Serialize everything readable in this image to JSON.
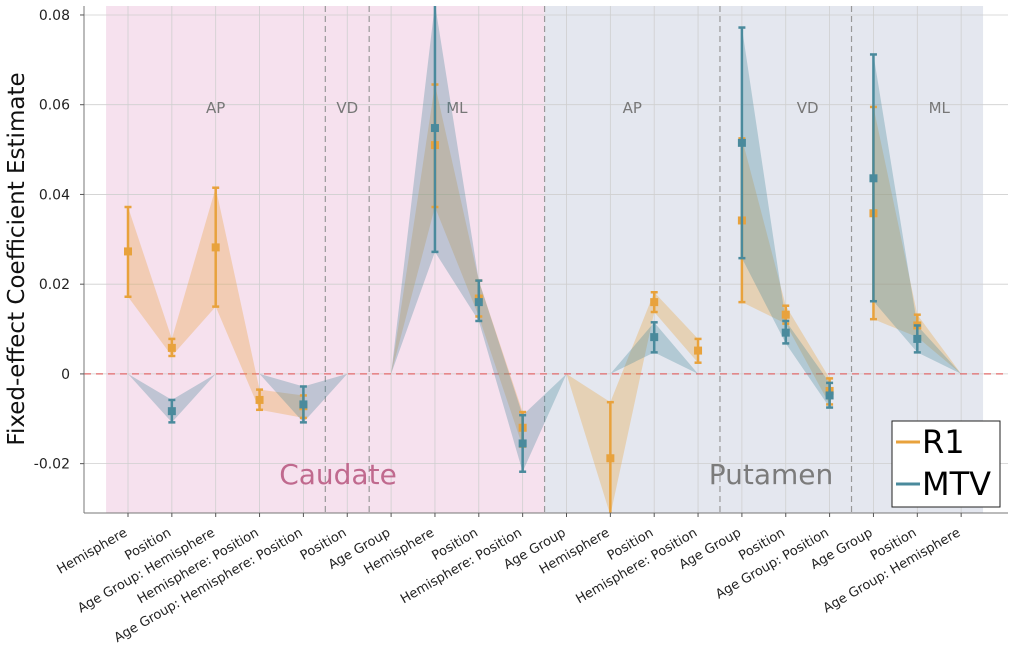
{
  "chart_data": {
    "type": "line",
    "title": "",
    "xlabel": "",
    "ylabel": "Fixed-effect Coefficient Estimate",
    "ylim": [
      -0.031,
      0.082
    ],
    "yticks": [
      -0.02,
      0,
      0.02,
      0.04,
      0.06,
      0.08
    ],
    "ytick_labels": [
      "-0.02",
      "0",
      "0.02",
      "0.04",
      "0.06",
      "0.08"
    ],
    "grid": true,
    "legend_position": "bottom-right",
    "categories": [
      "Hemisphere",
      "Position",
      "Age Group: Hemisphere",
      "Hemisphere: Position",
      "Age Group: Hemisphere: Position",
      "Position",
      "Age Group",
      "Hemisphere",
      "Position",
      "Hemisphere: Position",
      "Age Group",
      "Hemisphere",
      "Position",
      "Hemisphere: Position",
      "Age Group",
      "Position",
      "Age Group: Position",
      "Age Group",
      "Position",
      "Age Group: Hemisphere"
    ],
    "regions": [
      {
        "name": "Caudate",
        "color": "#f6e1ee",
        "label_color": "#c0698e",
        "from": -0.5,
        "to": 9.5
      },
      {
        "name": "Putamen",
        "color": "#e4e7ef",
        "label_color": "#7b7b7b",
        "from": 9.5,
        "to": 19.5
      }
    ],
    "subregions": [
      {
        "label": "AP",
        "center": 2
      },
      {
        "label": "VD",
        "center": 5
      },
      {
        "label": "ML",
        "center": 7.5
      },
      {
        "label": "AP",
        "center": 11.5
      },
      {
        "label": "VD",
        "center": 15.5
      },
      {
        "label": "ML",
        "center": 18.5
      }
    ],
    "dividers": [
      4.5,
      5.5,
      9.5,
      13.5,
      16.5
    ],
    "reference_line": 0,
    "series": [
      {
        "name": "R1",
        "color": "#e8a23c",
        "segments": [
          [
            0,
            4
          ],
          [
            6,
            9
          ],
          [
            10,
            13
          ],
          [
            14,
            16
          ],
          [
            17,
            19
          ]
        ],
        "values": [
          0.0273,
          0.0058,
          0.0282,
          -0.0058,
          -0.0072,
          0.0,
          0.0,
          0.051,
          0.0168,
          -0.012,
          0.0,
          -0.0188,
          0.016,
          0.0052,
          0.0342,
          0.0132,
          -0.0038,
          0.0358,
          0.0108,
          0.0
        ],
        "lower": [
          0.0172,
          0.004,
          0.015,
          -0.008,
          -0.0098,
          0.0,
          0.0,
          0.0372,
          0.0128,
          -0.0162,
          0.0,
          -0.0315,
          0.0138,
          0.0025,
          0.016,
          0.0112,
          -0.0068,
          0.0122,
          0.0082,
          0.0
        ],
        "upper": [
          0.0372,
          0.0078,
          0.0415,
          -0.0035,
          -0.0048,
          0.0,
          0.0,
          0.0645,
          0.0208,
          -0.0085,
          0.0,
          -0.0063,
          0.0182,
          0.0078,
          0.0525,
          0.0152,
          -0.001,
          0.0595,
          0.0132,
          0.0
        ]
      },
      {
        "name": "MTV",
        "color": "#4a8a9c",
        "segments": [
          [
            0,
            2
          ],
          [
            3,
            5
          ],
          [
            6,
            10
          ],
          [
            11,
            13
          ],
          [
            14,
            16
          ],
          [
            17,
            19
          ]
        ],
        "values": [
          0.0,
          -0.0083,
          0.0,
          0.0,
          -0.0068,
          0.0,
          0.0,
          0.0548,
          0.016,
          -0.0155,
          0.0,
          0.0,
          0.0082,
          0.0,
          0.0515,
          0.0092,
          -0.0048,
          0.0436,
          0.0078,
          0.0
        ],
        "lower": [
          0.0,
          -0.0108,
          0.0,
          0.0,
          -0.0108,
          0.0,
          0.0,
          0.0272,
          0.0118,
          -0.0218,
          0.0,
          0.0,
          0.0048,
          0.0,
          0.0258,
          0.0068,
          -0.0075,
          0.0162,
          0.0048,
          0.0
        ],
        "upper": [
          0.0,
          -0.0058,
          0.0,
          0.0,
          -0.0028,
          0.0,
          0.0,
          0.0825,
          0.0208,
          -0.0092,
          0.0,
          0.0,
          0.0115,
          0.0,
          0.0772,
          0.0118,
          -0.002,
          0.0712,
          0.0108,
          0.0
        ]
      }
    ],
    "markers": {
      "R1": [
        0,
        1,
        2,
        3,
        4,
        7,
        8,
        9,
        11,
        12,
        13,
        14,
        15,
        16,
        17,
        18
      ],
      "MTV": [
        1,
        4,
        7,
        8,
        9,
        12,
        14,
        15,
        16,
        17,
        18
      ]
    }
  }
}
